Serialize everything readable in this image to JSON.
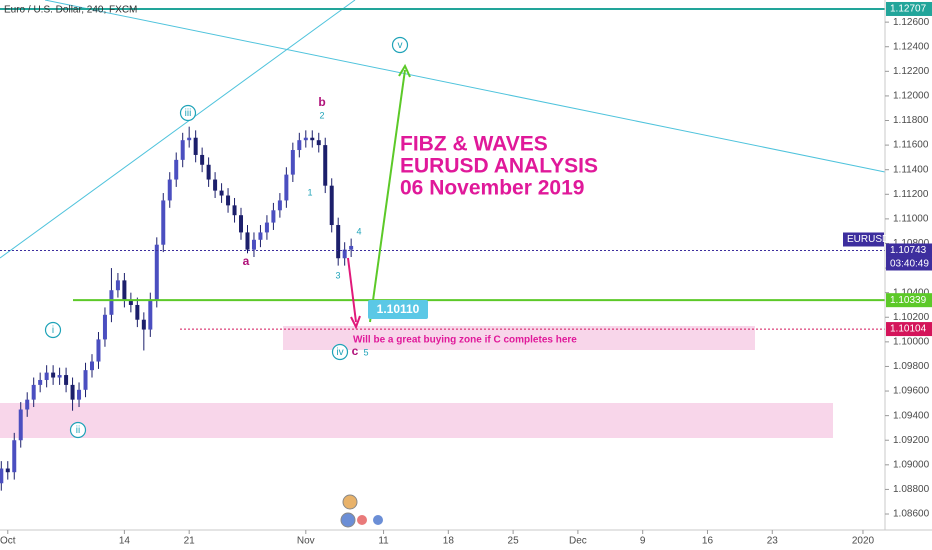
{
  "chart_data": {
    "type": "candlestick",
    "title": "Euro / U.S. Dollar, 240, FXCM",
    "x": [
      -0.5,
      0,
      0.5,
      1,
      1.5,
      2,
      2.5,
      3,
      3.5,
      4,
      4.5,
      5,
      5.5,
      6,
      6.5,
      7,
      7.5,
      8,
      8.5,
      9,
      9.5,
      10,
      10.5,
      11,
      11.5,
      12,
      12.5,
      13,
      13.5,
      14,
      14.5,
      15,
      15.5,
      16,
      16.5,
      17,
      17.5,
      18,
      18.5,
      19,
      19.5,
      20,
      20.5,
      21,
      21.5,
      22,
      22.5,
      23,
      23.5,
      24,
      24.5,
      25,
      25.5,
      26,
      26.5
    ],
    "open": [
      1.0885,
      1.0897,
      1.0894,
      1.092,
      1.0945,
      1.0953,
      1.0965,
      1.0969,
      1.0975,
      1.0971,
      1.0973,
      1.0965,
      1.0953,
      1.0961,
      1.0977,
      1.0984,
      1.1002,
      1.1022,
      1.1042,
      1.105,
      1.1034,
      1.103,
      1.1018,
      1.101,
      1.1034,
      1.1079,
      1.1115,
      1.1132,
      1.1148,
      1.1164,
      1.1166,
      1.1152,
      1.1144,
      1.1132,
      1.1123,
      1.1119,
      1.1111,
      1.1103,
      1.1089,
      1.1075,
      1.1083,
      1.1089,
      1.1097,
      1.1107,
      1.1115,
      1.1136,
      1.1156,
      1.1164,
      1.1166,
      1.1164,
      1.116,
      1.1127,
      1.1095,
      1.1068,
      1.1075
    ],
    "high": [
      1.0903,
      1.0903,
      1.0926,
      1.0951,
      1.0959,
      1.0971,
      1.0975,
      1.0981,
      1.0981,
      1.0979,
      1.0979,
      1.0971,
      1.0967,
      1.0983,
      1.099,
      1.1008,
      1.1028,
      1.106,
      1.1056,
      1.1056,
      1.104,
      1.1036,
      1.1024,
      1.104,
      1.1085,
      1.1121,
      1.1138,
      1.1154,
      1.117,
      1.1175,
      1.1172,
      1.1158,
      1.115,
      1.1138,
      1.1129,
      1.1125,
      1.1117,
      1.1109,
      1.1095,
      1.1089,
      1.1095,
      1.1103,
      1.1113,
      1.1121,
      1.1142,
      1.1162,
      1.117,
      1.1172,
      1.1172,
      1.117,
      1.1166,
      1.1133,
      1.1101,
      1.1081,
      1.1084
    ],
    "low": [
      1.0879,
      1.0888,
      1.0888,
      1.0914,
      1.0939,
      1.0947,
      1.0959,
      1.0963,
      1.0965,
      1.0965,
      1.0959,
      1.0944,
      1.0947,
      1.0955,
      1.0971,
      1.0978,
      1.0996,
      1.1016,
      1.1036,
      1.1028,
      1.1024,
      1.1012,
      1.0993,
      1.1004,
      1.1028,
      1.1073,
      1.1109,
      1.1126,
      1.1142,
      1.1158,
      1.1146,
      1.1138,
      1.1126,
      1.1117,
      1.1113,
      1.1105,
      1.1097,
      1.1083,
      1.1072,
      1.1069,
      1.1077,
      1.1083,
      1.1091,
      1.1101,
      1.1109,
      1.113,
      1.115,
      1.1158,
      1.1158,
      1.1154,
      1.1121,
      1.1089,
      1.1062,
      1.1062,
      1.1069
    ],
    "close": [
      1.0897,
      1.0894,
      1.092,
      1.0945,
      1.0953,
      1.0965,
      1.0969,
      1.0975,
      1.0971,
      1.0973,
      1.0965,
      1.0953,
      1.0961,
      1.0977,
      1.0984,
      1.1002,
      1.1022,
      1.1042,
      1.105,
      1.1034,
      1.103,
      1.1018,
      1.101,
      1.1034,
      1.1079,
      1.1115,
      1.1132,
      1.1148,
      1.1164,
      1.1166,
      1.1152,
      1.1144,
      1.1132,
      1.1123,
      1.1119,
      1.1111,
      1.1103,
      1.1089,
      1.1075,
      1.1083,
      1.1089,
      1.1097,
      1.1107,
      1.1115,
      1.1136,
      1.1156,
      1.1164,
      1.1166,
      1.1164,
      1.116,
      1.1127,
      1.1095,
      1.1068,
      1.1075,
      1.1078
    ],
    "up_color": "#4b4fc0",
    "down_color": "#1c1f6b",
    "xlim": [
      -0.6,
      67.7
    ],
    "xticks": [
      {
        "value": 0,
        "label": "Oct"
      },
      {
        "value": 9,
        "label": "14"
      },
      {
        "value": 14,
        "label": "21"
      },
      {
        "value": 23,
        "label": "Nov"
      },
      {
        "value": 29,
        "label": "11"
      },
      {
        "value": 34,
        "label": "18"
      },
      {
        "value": 39,
        "label": "25"
      },
      {
        "value": 44,
        "label": "Dec"
      },
      {
        "value": 49,
        "label": "9"
      },
      {
        "value": 54,
        "label": "16"
      },
      {
        "value": 59,
        "label": "23"
      },
      {
        "value": 66,
        "label": "2020"
      }
    ],
    "ylim": [
      1.0847,
      1.1278
    ],
    "yticks": [
      {
        "value": 1.086,
        "label": "1.08600"
      },
      {
        "value": 1.088,
        "label": "1.08800"
      },
      {
        "value": 1.09,
        "label": "1.09000"
      },
      {
        "value": 1.092,
        "label": "1.09200"
      },
      {
        "value": 1.094,
        "label": "1.09400"
      },
      {
        "value": 1.096,
        "label": "1.09600"
      },
      {
        "value": 1.098,
        "label": "1.09800"
      },
      {
        "value": 1.1,
        "label": "1.10000"
      },
      {
        "value": 1.102,
        "label": "1.10200"
      },
      {
        "value": 1.104,
        "label": "1.10400"
      },
      {
        "value": 1.106,
        "label": "1.10600"
      },
      {
        "value": 1.108,
        "label": "1.10800"
      },
      {
        "value": 1.11,
        "label": "1.11000"
      },
      {
        "value": 1.112,
        "label": "1.11200"
      },
      {
        "value": 1.114,
        "label": "1.11400"
      },
      {
        "value": 1.116,
        "label": "1.11600"
      },
      {
        "value": 1.118,
        "label": "1.11800"
      },
      {
        "value": 1.12,
        "label": "1.12000"
      },
      {
        "value": 1.122,
        "label": "1.12200"
      },
      {
        "value": 1.124,
        "label": "1.12400"
      },
      {
        "value": 1.126,
        "label": "1.12600"
      }
    ],
    "price_lines": [
      {
        "value": 1.12707,
        "color": "#22a59a"
      },
      {
        "value": 1.10339,
        "color": "#5cc928"
      },
      {
        "value": 1.10104,
        "color": "#d4145a"
      },
      {
        "value": 1.10743,
        "color": "#3d2e9e",
        "symbol": "EURUSD",
        "countdown": "03:40:49"
      }
    ],
    "target": {
      "value": 1.1011,
      "label": "1.10110"
    },
    "waves": [
      "iii",
      "i",
      "ii",
      "iv",
      "v",
      "a",
      "b",
      "c",
      "1",
      "2",
      "3",
      "4",
      "5"
    ],
    "headline": [
      "FIBZ & WAVES",
      "EURUSD ANALYSIS",
      "06 November 2019"
    ],
    "zone_note": "Will be a great buying zone if C completes here"
  }
}
